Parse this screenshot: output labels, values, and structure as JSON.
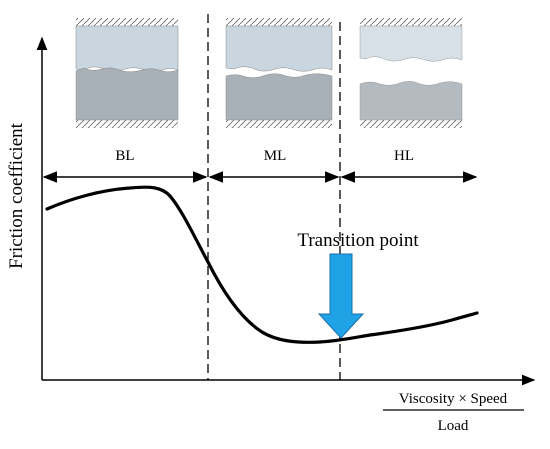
{
  "y_axis_label": "Friction coefficient",
  "x_axis_label": {
    "numerator": "Viscosity × Speed",
    "denominator": "Load"
  },
  "regimes": [
    {
      "label": "BL"
    },
    {
      "label": "ML"
    },
    {
      "label": "HL"
    }
  ],
  "annotation": "Transition point",
  "colors": {
    "upper_block": "#c9d6df",
    "lower_block": "#a8b1b8",
    "arrow": "#1fa3e6",
    "arrow_edge": "#1a6fa8",
    "curve": "#000000"
  }
}
